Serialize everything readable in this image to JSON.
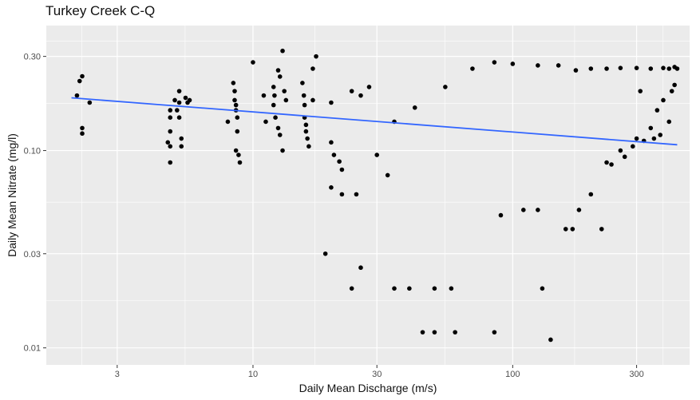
{
  "chart_data": {
    "type": "scatter",
    "title": "Turkey Creek C-Q",
    "xlabel": "Daily Mean Discharge (m/s)",
    "ylabel": "Daily Mean Nitrate (mg/l)",
    "x_scale": "log10",
    "y_scale": "log10",
    "xlim": [
      1.6,
      480
    ],
    "ylim": [
      0.0082,
      0.43
    ],
    "x_ticks": [
      3,
      10,
      30,
      100,
      300
    ],
    "x_tick_labels": [
      "3",
      "10",
      "30",
      "100",
      "300"
    ],
    "y_ticks": [
      0.01,
      0.03,
      0.1,
      0.3
    ],
    "y_tick_labels": [
      "0.01",
      "0.03",
      "0.10",
      "0.30"
    ],
    "grid": true,
    "legend": "none",
    "colors": {
      "panel": "#ebebeb",
      "grid": "#ffffff",
      "points": "#000000",
      "trend": "#3366ff"
    },
    "trend_line": {
      "x": [
        2.0,
        430
      ],
      "y": [
        0.185,
        0.107
      ],
      "color": "#3366ff"
    },
    "series": [
      {
        "points": [
          [
            2.1,
            0.19
          ],
          [
            2.15,
            0.225
          ],
          [
            2.2,
            0.238
          ],
          [
            2.2,
            0.13
          ],
          [
            2.2,
            0.122
          ],
          [
            2.35,
            0.175
          ],
          [
            4.8,
            0.16
          ],
          [
            4.8,
            0.147
          ],
          [
            4.8,
            0.125
          ],
          [
            4.7,
            0.11
          ],
          [
            4.8,
            0.105
          ],
          [
            4.8,
            0.087
          ],
          [
            5.0,
            0.18
          ],
          [
            5.1,
            0.16
          ],
          [
            5.2,
            0.2
          ],
          [
            5.2,
            0.175
          ],
          [
            5.2,
            0.147
          ],
          [
            5.3,
            0.115
          ],
          [
            5.3,
            0.105
          ],
          [
            5.5,
            0.185
          ],
          [
            5.6,
            0.175
          ],
          [
            5.7,
            0.18
          ],
          [
            8.0,
            0.14
          ],
          [
            8.4,
            0.22
          ],
          [
            8.5,
            0.2
          ],
          [
            8.5,
            0.18
          ],
          [
            8.6,
            0.17
          ],
          [
            8.6,
            0.16
          ],
          [
            8.7,
            0.147
          ],
          [
            8.7,
            0.125
          ],
          [
            8.6,
            0.1
          ],
          [
            8.8,
            0.095
          ],
          [
            8.9,
            0.087
          ],
          [
            10.0,
            0.28
          ],
          [
            11.0,
            0.19
          ],
          [
            11.2,
            0.14
          ],
          [
            12.0,
            0.21
          ],
          [
            12.1,
            0.19
          ],
          [
            12.0,
            0.17
          ],
          [
            12.2,
            0.147
          ],
          [
            12.5,
            0.255
          ],
          [
            12.7,
            0.237
          ],
          [
            12.5,
            0.13
          ],
          [
            12.7,
            0.12
          ],
          [
            13.0,
            0.32
          ],
          [
            13.2,
            0.2
          ],
          [
            13.0,
            0.1
          ],
          [
            13.4,
            0.18
          ],
          [
            15.5,
            0.22
          ],
          [
            15.7,
            0.19
          ],
          [
            15.8,
            0.17
          ],
          [
            15.8,
            0.147
          ],
          [
            16.0,
            0.135
          ],
          [
            16.0,
            0.125
          ],
          [
            16.2,
            0.115
          ],
          [
            16.4,
            0.105
          ],
          [
            17.0,
            0.26
          ],
          [
            17.0,
            0.18
          ],
          [
            17.5,
            0.3
          ],
          [
            19.0,
            0.03
          ],
          [
            20.0,
            0.175
          ],
          [
            20.0,
            0.11
          ],
          [
            20.5,
            0.095
          ],
          [
            21.5,
            0.088
          ],
          [
            22.0,
            0.08
          ],
          [
            24.0,
            0.2
          ],
          [
            26.0,
            0.19
          ],
          [
            28.0,
            0.21
          ],
          [
            35.0,
            0.14
          ],
          [
            42.0,
            0.165
          ],
          [
            55.0,
            0.21
          ],
          [
            70.0,
            0.26
          ],
          [
            85.0,
            0.28
          ],
          [
            100.0,
            0.275
          ],
          [
            125.0,
            0.27
          ],
          [
            150.0,
            0.27
          ],
          [
            175.0,
            0.255
          ],
          [
            200.0,
            0.26
          ],
          [
            230.0,
            0.26
          ],
          [
            260.0,
            0.262
          ],
          [
            300.0,
            0.262
          ],
          [
            340.0,
            0.26
          ],
          [
            380.0,
            0.262
          ],
          [
            400.0,
            0.26
          ],
          [
            420.0,
            0.265
          ],
          [
            430.0,
            0.26
          ],
          [
            310.0,
            0.2
          ],
          [
            340.0,
            0.13
          ],
          [
            360.0,
            0.16
          ],
          [
            370.0,
            0.12
          ],
          [
            380.0,
            0.18
          ],
          [
            400.0,
            0.14
          ],
          [
            410.0,
            0.2
          ],
          [
            420.0,
            0.215
          ],
          [
            300.0,
            0.115
          ],
          [
            320.0,
            0.112
          ],
          [
            350.0,
            0.115
          ],
          [
            290.0,
            0.105
          ],
          [
            260.0,
            0.1
          ],
          [
            270.0,
            0.093
          ],
          [
            230.0,
            0.087
          ],
          [
            240.0,
            0.085
          ],
          [
            20.0,
            0.065
          ],
          [
            22.0,
            0.06
          ],
          [
            25.0,
            0.06
          ],
          [
            30.0,
            0.095
          ],
          [
            33.0,
            0.075
          ],
          [
            160.0,
            0.04
          ],
          [
            170.0,
            0.04
          ],
          [
            180.0,
            0.05
          ],
          [
            200.0,
            0.06
          ],
          [
            220.0,
            0.04
          ],
          [
            90.0,
            0.047
          ],
          [
            110.0,
            0.05
          ],
          [
            125.0,
            0.05
          ],
          [
            24.0,
            0.02
          ],
          [
            26.0,
            0.0255
          ],
          [
            35.0,
            0.02
          ],
          [
            40.0,
            0.02
          ],
          [
            50.0,
            0.02
          ],
          [
            58.0,
            0.02
          ],
          [
            130.0,
            0.02
          ],
          [
            140.0,
            0.011
          ],
          [
            45.0,
            0.012
          ],
          [
            50.0,
            0.012
          ],
          [
            60.0,
            0.012
          ],
          [
            85.0,
            0.012
          ]
        ]
      }
    ]
  }
}
